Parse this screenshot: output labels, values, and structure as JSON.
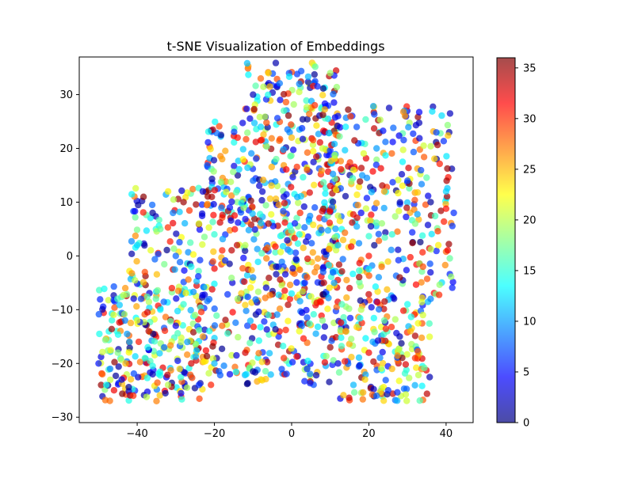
{
  "chart_data": {
    "type": "scatter",
    "title": "t-SNE Visualization of Embeddings",
    "xlabel": "",
    "ylabel": "",
    "xlim": [
      -55,
      47
    ],
    "ylim": [
      -31,
      37
    ],
    "xticks": [
      -40,
      -20,
      0,
      20,
      40
    ],
    "yticks": [
      -30,
      -20,
      -10,
      0,
      10,
      20,
      30
    ],
    "grid": false,
    "marker_alpha": 0.7,
    "colormap": "jet",
    "colorbar": {
      "min": 0,
      "max": 36,
      "ticks": [
        0,
        5,
        10,
        15,
        20,
        25,
        30,
        35
      ]
    },
    "colormap_stops": [
      "#00007f",
      "#0000ff",
      "#007fff",
      "#00ffff",
      "#7fff7f",
      "#ffff00",
      "#ff7f00",
      "#ff0000",
      "#7f0000"
    ],
    "cluster_regions": [
      {
        "x": [
          -50,
          -22
        ],
        "y": [
          -27,
          -5
        ],
        "n": 260
      },
      {
        "x": [
          -42,
          -22
        ],
        "y": [
          -5,
          13
        ],
        "n": 90
      },
      {
        "x": [
          -22,
          12
        ],
        "y": [
          -24,
          0
        ],
        "n": 260
      },
      {
        "x": [
          -22,
          12
        ],
        "y": [
          0,
          25
        ],
        "n": 330
      },
      {
        "x": [
          -12,
          12
        ],
        "y": [
          25,
          36
        ],
        "n": 90
      },
      {
        "x": [
          8,
          42
        ],
        "y": [
          -8,
          28
        ],
        "n": 310
      },
      {
        "x": [
          12,
          36
        ],
        "y": [
          -27,
          -8
        ],
        "n": 170
      }
    ],
    "points": [
      [
        -50,
        -20,
        5
      ],
      [
        -49,
        -22,
        28
      ],
      [
        -48,
        -24,
        14
      ],
      [
        -47,
        -21,
        9
      ],
      [
        -46,
        -25,
        32
      ],
      [
        -45,
        -18,
        18
      ],
      [
        -44,
        -23,
        3
      ],
      [
        -43,
        -20,
        25
      ],
      [
        -42,
        -16,
        11
      ],
      [
        -41,
        -26,
        30
      ],
      [
        -40,
        -12,
        22
      ],
      [
        -39,
        -8,
        7
      ],
      [
        -38,
        -19,
        16
      ],
      [
        -37,
        -14,
        34
      ],
      [
        -36,
        -22,
        2
      ],
      [
        -35,
        -27,
        27
      ],
      [
        -34,
        -10,
        13
      ],
      [
        -33,
        -17,
        8
      ],
      [
        -32,
        -24,
        20
      ],
      [
        -31,
        -6,
        31
      ],
      [
        -30,
        -13,
        4
      ],
      [
        -29,
        -21,
        24
      ],
      [
        -28,
        -9,
        15
      ],
      [
        -27,
        -16,
        10
      ],
      [
        -26,
        -20,
        33
      ],
      [
        -25,
        -11,
        19
      ],
      [
        -24,
        -24,
        6
      ],
      [
        -23,
        -15,
        26
      ],
      [
        -40,
        2,
        12
      ],
      [
        -38,
        -3,
        29
      ],
      [
        -36,
        8,
        1
      ],
      [
        -34,
        5,
        17
      ],
      [
        -32,
        12,
        23
      ],
      [
        -30,
        0,
        8
      ],
      [
        -28,
        10,
        35
      ],
      [
        -26,
        -2,
        14
      ],
      [
        -24,
        6,
        21
      ],
      [
        -23,
        12,
        3
      ],
      [
        -20,
        -20,
        11
      ],
      [
        -18,
        -13,
        28
      ],
      [
        -16,
        -22,
        4
      ],
      [
        -14,
        -8,
        19
      ],
      [
        -12,
        -18,
        33
      ],
      [
        -10,
        -4,
        9
      ],
      [
        -8,
        -23,
        24
      ],
      [
        -6,
        -11,
        16
      ],
      [
        -4,
        -2,
        2
      ],
      [
        -2,
        -19,
        30
      ],
      [
        0,
        -7,
        13
      ],
      [
        2,
        -14,
        22
      ],
      [
        4,
        -21,
        6
      ],
      [
        6,
        -3,
        27
      ],
      [
        8,
        -12,
        18
      ],
      [
        10,
        -17,
        35
      ],
      [
        11,
        -5,
        10
      ],
      [
        -20,
        4,
        15
      ],
      [
        -18,
        18,
        26
      ],
      [
        -16,
        9,
        5
      ],
      [
        -14,
        22,
        31
      ],
      [
        -12,
        2,
        20
      ],
      [
        -10,
        14,
        8
      ],
      [
        -8,
        24,
        12
      ],
      [
        -6,
        6,
        34
      ],
      [
        -4,
        18,
        17
      ],
      [
        -2,
        11,
        3
      ],
      [
        0,
        22,
        25
      ],
      [
        2,
        4,
        14
      ],
      [
        4,
        16,
        29
      ],
      [
        6,
        9,
        7
      ],
      [
        8,
        20,
        21
      ],
      [
        10,
        13,
        32
      ],
      [
        12,
        2,
        11
      ],
      [
        -10,
        30,
        2
      ],
      [
        -6,
        34,
        24
      ],
      [
        -2,
        27,
        16
      ],
      [
        2,
        32,
        9
      ],
      [
        6,
        28,
        30
      ],
      [
        10,
        34,
        19
      ],
      [
        12,
        26,
        5
      ],
      [
        -8,
        33,
        28
      ],
      [
        14,
        24,
        13
      ],
      [
        16,
        16,
        22
      ],
      [
        18,
        8,
        4
      ],
      [
        20,
        0,
        31
      ],
      [
        22,
        20,
        10
      ],
      [
        24,
        12,
        26
      ],
      [
        26,
        4,
        15
      ],
      [
        28,
        -4,
        35
      ],
      [
        30,
        14,
        7
      ],
      [
        32,
        6,
        18
      ],
      [
        34,
        -2,
        29
      ],
      [
        36,
        10,
        1
      ],
      [
        38,
        2,
        23
      ],
      [
        40,
        12,
        12
      ],
      [
        42,
        8,
        6
      ],
      [
        15,
        -6,
        33
      ],
      [
        12,
        -20,
        3
      ],
      [
        14,
        -14,
        27
      ],
      [
        16,
        -24,
        11
      ],
      [
        18,
        -10,
        20
      ],
      [
        20,
        -18,
        32
      ],
      [
        22,
        -26,
        8
      ],
      [
        24,
        -12,
        17
      ],
      [
        26,
        -21,
        25
      ],
      [
        28,
        -15,
        2
      ],
      [
        30,
        -9,
        14
      ],
      [
        32,
        -19,
        30
      ],
      [
        34,
        -11,
        21
      ],
      [
        36,
        -8,
        9
      ],
      [
        19,
        -23,
        24
      ],
      [
        25,
        -25,
        6
      ],
      [
        13,
        -9,
        16
      ]
    ]
  }
}
